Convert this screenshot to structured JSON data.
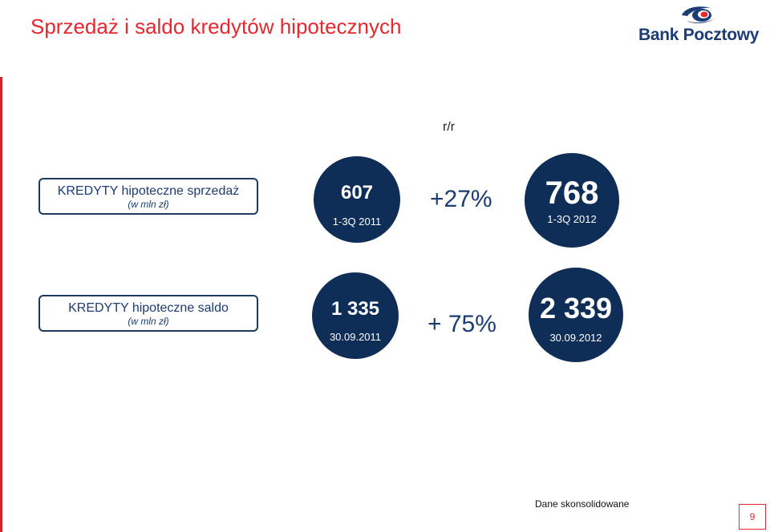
{
  "title": "Sprzedaż i saldo kredytów hipotecznych",
  "logo": {
    "text": "Bank Pocztowy",
    "icon": "bank-pocztowy-emblem",
    "colors": {
      "navy": "#1b3c74",
      "red": "#e8272e"
    }
  },
  "header_yoy": "r/r",
  "rows": [
    {
      "label": "KREDYTY hipoteczne sprzedaż",
      "unit": "(w mln zł)",
      "prev": {
        "value": "607",
        "period": "1-3Q 2011"
      },
      "change": "+27%",
      "curr": {
        "value": "768",
        "period": "1-3Q 2012"
      }
    },
    {
      "label": "KREDYTY hipoteczne saldo",
      "unit": "(w mln zł)",
      "prev": {
        "value": "1 335",
        "period": "30.09.2011"
      },
      "change": "+ 75%",
      "curr": {
        "value": "2 339",
        "period": "30.09.2012"
      }
    }
  ],
  "footer": {
    "note": "Dane skonsolidowane",
    "page": "9"
  },
  "colors": {
    "accent": "#e8272e",
    "circle": "#0f2e57",
    "text": "#1b3c74"
  }
}
